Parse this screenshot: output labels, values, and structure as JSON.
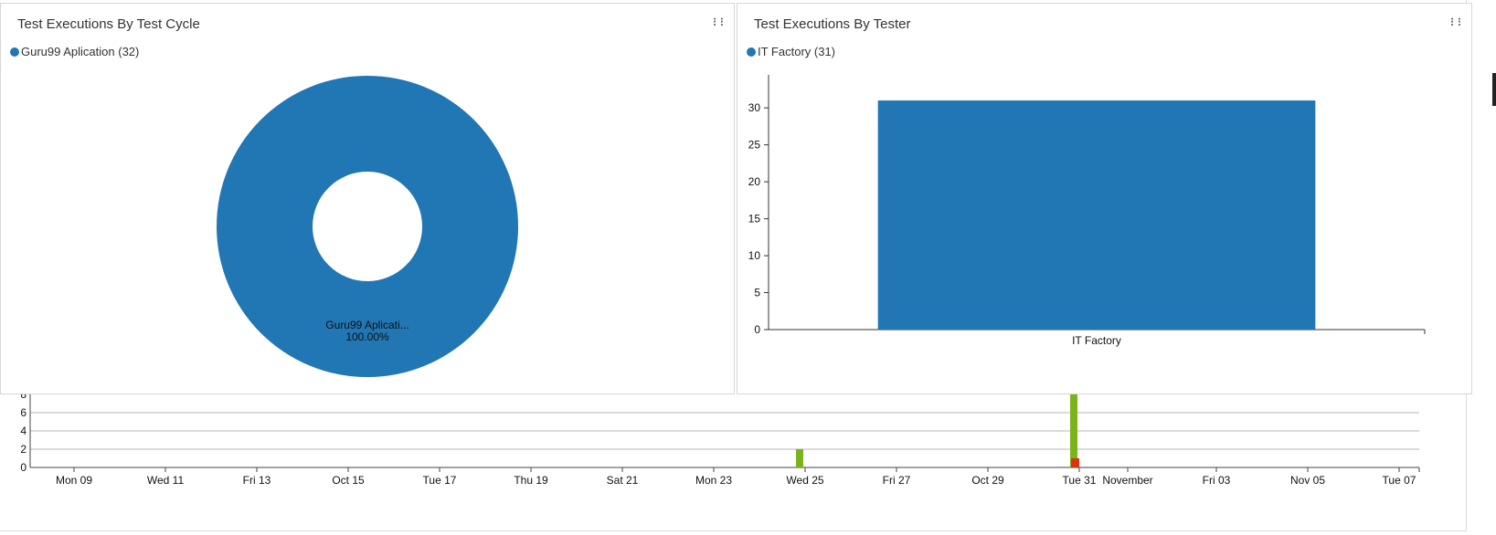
{
  "widgets": {
    "cycle": {
      "title": "Test Executions By Test Cycle",
      "legend_text": "Guru99 Aplication (32)",
      "slice_label": "Guru99 Aplicati...",
      "slice_percent": "100.00%"
    },
    "tester": {
      "title": "Test Executions By Tester",
      "legend_text": "IT Factory (31)"
    }
  },
  "colors": {
    "primary": "#2176b4",
    "pass": "#7bb31a",
    "fail": "#d9340f",
    "grid": "#b5b5b5"
  },
  "chart_data": [
    {
      "type": "pie",
      "variant": "donut",
      "title": "Test Executions By Test Cycle",
      "slices": [
        {
          "name": "Guru99 Aplication",
          "value": 32,
          "percent": 100.0
        }
      ],
      "legend": [
        "Guru99 Aplication (32)"
      ],
      "legend_position": "top-left"
    },
    {
      "type": "bar",
      "title": "Test Executions By Tester",
      "categories": [
        "IT Factory"
      ],
      "values": [
        31
      ],
      "yticks": [
        0,
        5,
        10,
        15,
        20,
        25,
        30
      ],
      "ylim": [
        0,
        32
      ],
      "legend": [
        "IT Factory (31)"
      ],
      "legend_position": "top-left"
    },
    {
      "type": "bar",
      "title": "",
      "x_tick_labels": [
        "Mon 09",
        "Wed 11",
        "Fri 13",
        "Oct 15",
        "Tue 17",
        "Thu 19",
        "Sat 21",
        "Mon 23",
        "Wed 25",
        "Fri 27",
        "Oct 29",
        "Tue 31",
        "November",
        "Fri 03",
        "Nov 05",
        "Tue 07"
      ],
      "yticks": [
        0,
        2,
        4,
        6
      ],
      "ylim": [
        0,
        8
      ],
      "grid": true,
      "series": [
        {
          "color": "#7bb31a",
          "points": [
            {
              "x": "Tue 24",
              "y": 2
            },
            {
              "x": "Mon 30",
              "y": 8
            }
          ]
        },
        {
          "color": "#d9340f",
          "points": [
            {
              "x": "Mon 30",
              "y": 1
            }
          ]
        }
      ]
    }
  ]
}
